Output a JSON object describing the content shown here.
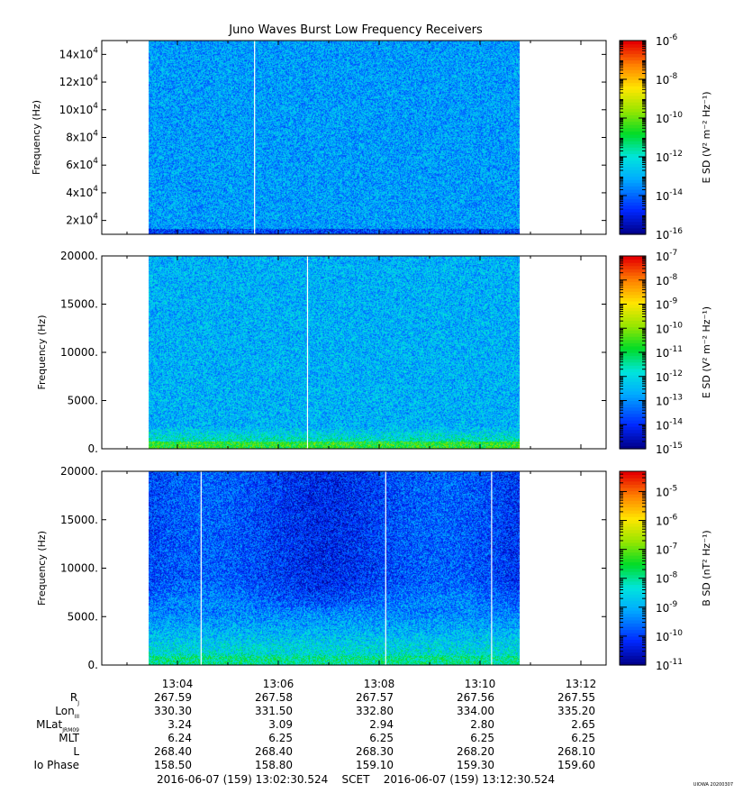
{
  "chart_data": {
    "type": "heatmap",
    "title": "Juno Waves Burst Low Frequency Receivers",
    "time_range": {
      "start_min": 782.5,
      "end_min": 792.5
    },
    "panels": [
      {
        "id": "panel1",
        "ylabel": "Frequency (Hz)",
        "ylim": [
          10000,
          150000
        ],
        "yticks": [
          {
            "v": 20000,
            "mant": "2x10",
            "exp": "4"
          },
          {
            "v": 40000,
            "mant": "4x10",
            "exp": "4"
          },
          {
            "v": 60000,
            "mant": "6x10",
            "exp": "4"
          },
          {
            "v": 80000,
            "mant": "8x10",
            "exp": "4"
          },
          {
            "v": 100000,
            "mant": "10x10",
            "exp": "4"
          },
          {
            "v": 120000,
            "mant": "12x10",
            "exp": "4"
          },
          {
            "v": 140000,
            "mant": "14x10",
            "exp": "4"
          }
        ],
        "data_start_min": 783.43,
        "data_end_min": 790.78,
        "gaps_min": [
          785.53
        ],
        "colorbar": {
          "label": "E SD (V² m⁻² Hz⁻¹)",
          "log_range": [
            -16,
            -6
          ],
          "ticks": [
            {
              "v": -16,
              "label": "10",
              "exp": "-16"
            },
            {
              "v": -14,
              "label": "10",
              "exp": "-14"
            },
            {
              "v": -12,
              "label": "10",
              "exp": "-12"
            },
            {
              "v": -10,
              "label": "10",
              "exp": "-10"
            },
            {
              "v": -8,
              "label": "10",
              "exp": "-8"
            },
            {
              "v": -6,
              "label": "10",
              "exp": "-6"
            }
          ]
        },
        "intensity": {
          "base": 0.27,
          "low_band_boost": 0.0,
          "noise": 0.12
        }
      },
      {
        "id": "panel2",
        "ylabel": "Frequency (Hz)",
        "ylim": [
          0,
          20000
        ],
        "yticks": [
          {
            "v": 0,
            "label": "0."
          },
          {
            "v": 5000,
            "label": "5000."
          },
          {
            "v": 10000,
            "label": "10000."
          },
          {
            "v": 15000,
            "label": "15000."
          },
          {
            "v": 20000,
            "label": "20000."
          }
        ],
        "data_start_min": 783.43,
        "data_end_min": 790.78,
        "gaps_min": [
          786.58
        ],
        "colorbar": {
          "label": "E SD (V² m⁻² Hz⁻¹)",
          "log_range": [
            -15,
            -7
          ],
          "ticks": [
            {
              "v": -15,
              "label": "10",
              "exp": "-15"
            },
            {
              "v": -14,
              "label": "10",
              "exp": "-14"
            },
            {
              "v": -13,
              "label": "10",
              "exp": "-13"
            },
            {
              "v": -12,
              "label": "10",
              "exp": "-12"
            },
            {
              "v": -11,
              "label": "10",
              "exp": "-11"
            },
            {
              "v": -10,
              "label": "10",
              "exp": "-10"
            },
            {
              "v": -9,
              "label": "10",
              "exp": "-9"
            },
            {
              "v": -8,
              "label": "10",
              "exp": "-8"
            },
            {
              "v": -7,
              "label": "10",
              "exp": "-7"
            }
          ]
        },
        "intensity": {
          "base": 0.3,
          "low_band_boost": 0.25,
          "noise": 0.12
        }
      },
      {
        "id": "panel3",
        "ylabel": "Frequency (Hz)",
        "ylim": [
          0,
          20000
        ],
        "yticks": [
          {
            "v": 0,
            "label": "0."
          },
          {
            "v": 5000,
            "label": "5000."
          },
          {
            "v": 10000,
            "label": "10000."
          },
          {
            "v": 15000,
            "label": "15000."
          },
          {
            "v": 20000,
            "label": "20000."
          }
        ],
        "data_start_min": 783.43,
        "data_end_min": 790.78,
        "gaps_min": [
          784.47,
          788.13,
          790.23
        ],
        "colorbar": {
          "label": "B SD (nT² Hz⁻¹)",
          "log_range": [
            -11,
            -4.3
          ],
          "ticks": [
            {
              "v": -11,
              "label": "10",
              "exp": "-11"
            },
            {
              "v": -10,
              "label": "10",
              "exp": "-10"
            },
            {
              "v": -9,
              "label": "10",
              "exp": "-9"
            },
            {
              "v": -8,
              "label": "10",
              "exp": "-8"
            },
            {
              "v": -7,
              "label": "10",
              "exp": "-7"
            },
            {
              "v": -6,
              "label": "10",
              "exp": "-6"
            },
            {
              "v": -5,
              "label": "10",
              "exp": "-5"
            }
          ]
        },
        "intensity": {
          "base": 0.15,
          "low_band_boost": 0.35,
          "noise": 0.12
        }
      }
    ],
    "x_ticks": [
      {
        "t": 784,
        "label": "13:04"
      },
      {
        "t": 786,
        "label": "13:06"
      },
      {
        "t": 788,
        "label": "13:08"
      },
      {
        "t": 790,
        "label": "13:10"
      },
      {
        "t": 792,
        "label": "13:12"
      }
    ],
    "ephemeris": [
      {
        "label": "R",
        "sub": "J",
        "values": [
          "267.59",
          "267.58",
          "267.57",
          "267.56",
          "267.55"
        ]
      },
      {
        "label": "Lon",
        "sub": "III",
        "values": [
          "330.30",
          "331.50",
          "332.80",
          "334.00",
          "335.20"
        ]
      },
      {
        "label": "MLat",
        "sub": "JRM09",
        "values": [
          "3.24",
          "3.09",
          "2.94",
          "2.80",
          "2.65"
        ]
      },
      {
        "label": "MLT",
        "sub": "",
        "values": [
          "6.24",
          "6.25",
          "6.25",
          "6.25",
          "6.25"
        ]
      },
      {
        "label": "L",
        "sub": "",
        "values": [
          "268.40",
          "268.40",
          "268.30",
          "268.20",
          "268.10"
        ]
      },
      {
        "label": "Io Phase",
        "sub": "",
        "values": [
          "158.50",
          "158.80",
          "159.10",
          "159.30",
          "159.60"
        ]
      }
    ],
    "time_range_label": "2016-06-07 (159) 13:02:30.524    SCET    2016-06-07 (159) 13:12:30.524",
    "credit": "UIOWA 20200307"
  }
}
